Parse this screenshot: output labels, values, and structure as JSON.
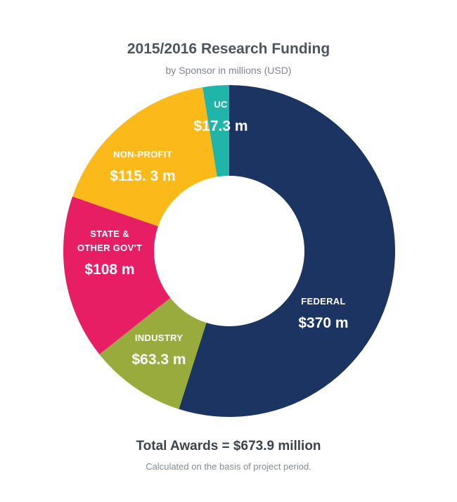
{
  "chart_data": {
    "type": "pie",
    "donut": true,
    "title": "2015/2016 Research Funding",
    "subtitle": "by Sponsor in millions (USD)",
    "slices": [
      {
        "name": "FEDERAL",
        "value": 370,
        "value_label": "$370 m",
        "color": "#1b3461"
      },
      {
        "name": "INDUSTRY",
        "value": 63.3,
        "value_label": "$63.3 m",
        "color": "#9aab3e"
      },
      {
        "name": "STATE & OTHER GOV'T",
        "name_lines": [
          "STATE &",
          "OTHER GOV'T"
        ],
        "value": 108,
        "value_label": "$108 m",
        "color": "#e71e63"
      },
      {
        "name": "NON-PROFIT",
        "value": 115.3,
        "value_label": "$115. 3 m",
        "color": "#fbba1a"
      },
      {
        "name": "UC",
        "value": 17.3,
        "value_label": "$17.3 m",
        "color": "#1fb5a8"
      }
    ]
  },
  "footer": {
    "total": "Total Awards = $673.9 million",
    "note": "Calculated on the basis of project period."
  }
}
